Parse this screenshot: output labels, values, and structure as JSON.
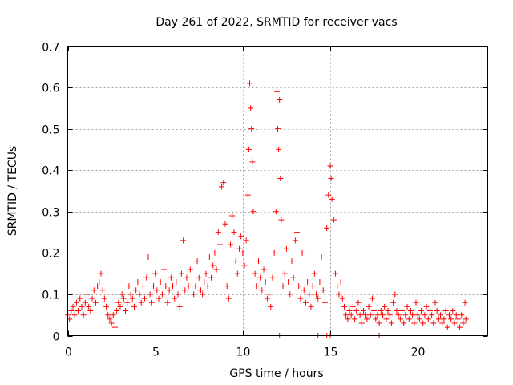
{
  "chart_data": {
    "type": "scatter",
    "title": "Day 261 of 2022, SRMTID for receiver vacs",
    "xlabel": "GPS time / hours",
    "ylabel": "SRMTID / TECUs",
    "xlim": [
      0,
      24
    ],
    "ylim": [
      0,
      0.7
    ],
    "xticks": [
      0,
      5,
      10,
      15,
      20
    ],
    "xtick_labels": [
      "0",
      "5",
      "10",
      "15",
      "20"
    ],
    "yticks": [
      0,
      0.1,
      0.2,
      0.3,
      0.4,
      0.5,
      0.6,
      0.7
    ],
    "ytick_labels": [
      "0",
      "0.1",
      "0.2",
      "0.3",
      "0.4",
      "0.5",
      "0.6",
      "0.7"
    ],
    "grid": true,
    "marker": "plus",
    "series": [
      {
        "name": "SRMTID",
        "color": "#ff0000",
        "points": [
          [
            0.0,
            0.05
          ],
          [
            0.1,
            0.04
          ],
          [
            0.2,
            0.06
          ],
          [
            0.3,
            0.07
          ],
          [
            0.4,
            0.05
          ],
          [
            0.5,
            0.08
          ],
          [
            0.6,
            0.06
          ],
          [
            0.7,
            0.09
          ],
          [
            0.8,
            0.07
          ],
          [
            0.9,
            0.05
          ],
          [
            1.0,
            0.08
          ],
          [
            1.1,
            0.1
          ],
          [
            1.2,
            0.07
          ],
          [
            1.3,
            0.06
          ],
          [
            1.4,
            0.09
          ],
          [
            1.5,
            0.11
          ],
          [
            1.6,
            0.08
          ],
          [
            1.7,
            0.12
          ],
          [
            1.8,
            0.13
          ],
          [
            1.9,
            0.15
          ],
          [
            2.0,
            0.11
          ],
          [
            2.1,
            0.09
          ],
          [
            2.2,
            0.07
          ],
          [
            2.3,
            0.05
          ],
          [
            2.4,
            0.04
          ],
          [
            2.5,
            0.03
          ],
          [
            2.6,
            0.05
          ],
          [
            2.7,
            0.02
          ],
          [
            2.8,
            0.06
          ],
          [
            2.9,
            0.08
          ],
          [
            3.0,
            0.07
          ],
          [
            3.1,
            0.1
          ],
          [
            3.2,
            0.09
          ],
          [
            3.3,
            0.06
          ],
          [
            3.4,
            0.08
          ],
          [
            3.5,
            0.12
          ],
          [
            3.6,
            0.1
          ],
          [
            3.7,
            0.09
          ],
          [
            3.8,
            0.07
          ],
          [
            3.9,
            0.11
          ],
          [
            4.0,
            0.13
          ],
          [
            4.1,
            0.1
          ],
          [
            4.2,
            0.08
          ],
          [
            4.3,
            0.12
          ],
          [
            4.4,
            0.09
          ],
          [
            4.5,
            0.14
          ],
          [
            4.6,
            0.19
          ],
          [
            4.7,
            0.1
          ],
          [
            4.8,
            0.08
          ],
          [
            4.9,
            0.12
          ],
          [
            5.0,
            0.15
          ],
          [
            5.1,
            0.11
          ],
          [
            5.2,
            0.09
          ],
          [
            5.3,
            0.13
          ],
          [
            5.4,
            0.1
          ],
          [
            5.5,
            0.16
          ],
          [
            5.6,
            0.12
          ],
          [
            5.7,
            0.08
          ],
          [
            5.8,
            0.11
          ],
          [
            5.9,
            0.14
          ],
          [
            6.0,
            0.12
          ],
          [
            6.1,
            0.09
          ],
          [
            6.2,
            0.13
          ],
          [
            6.3,
            0.1
          ],
          [
            6.4,
            0.07
          ],
          [
            6.5,
            0.15
          ],
          [
            6.6,
            0.23
          ],
          [
            6.7,
            0.11
          ],
          [
            6.8,
            0.14
          ],
          [
            6.9,
            0.12
          ],
          [
            7.0,
            0.16
          ],
          [
            7.1,
            0.13
          ],
          [
            7.2,
            0.1
          ],
          [
            7.3,
            0.12
          ],
          [
            7.4,
            0.18
          ],
          [
            7.5,
            0.14
          ],
          [
            7.6,
            0.11
          ],
          [
            7.7,
            0.1
          ],
          [
            7.8,
            0.13
          ],
          [
            7.9,
            0.15
          ],
          [
            8.0,
            0.12
          ],
          [
            8.1,
            0.19
          ],
          [
            8.2,
            0.14
          ],
          [
            8.3,
            0.17
          ],
          [
            8.4,
            0.2
          ],
          [
            8.5,
            0.16
          ],
          [
            8.6,
            0.25
          ],
          [
            8.7,
            0.22
          ],
          [
            8.8,
            0.36
          ],
          [
            8.9,
            0.37
          ],
          [
            9.0,
            0.27
          ],
          [
            9.1,
            0.12
          ],
          [
            9.2,
            0.09
          ],
          [
            9.3,
            0.22
          ],
          [
            9.4,
            0.29
          ],
          [
            9.5,
            0.25
          ],
          [
            9.6,
            0.18
          ],
          [
            9.7,
            0.15
          ],
          [
            9.8,
            0.21
          ],
          [
            9.9,
            0.24
          ],
          [
            10.0,
            0.2
          ],
          [
            10.1,
            0.17
          ],
          [
            10.2,
            0.23
          ],
          [
            10.3,
            0.34
          ],
          [
            10.35,
            0.45
          ],
          [
            10.4,
            0.61
          ],
          [
            10.45,
            0.55
          ],
          [
            10.5,
            0.5
          ],
          [
            10.55,
            0.42
          ],
          [
            10.6,
            0.3
          ],
          [
            10.7,
            0.15
          ],
          [
            10.8,
            0.12
          ],
          [
            10.9,
            0.18
          ],
          [
            11.0,
            0.14
          ],
          [
            11.1,
            0.11
          ],
          [
            11.2,
            0.16
          ],
          [
            11.3,
            0.13
          ],
          [
            11.4,
            0.09
          ],
          [
            11.5,
            0.1
          ],
          [
            11.6,
            0.07
          ],
          [
            11.7,
            0.14
          ],
          [
            11.8,
            0.2
          ],
          [
            11.9,
            0.3
          ],
          [
            11.95,
            0.59
          ],
          [
            12.0,
            0.5
          ],
          [
            12.05,
            0.45
          ],
          [
            12.1,
            0.57
          ],
          [
            12.15,
            0.38
          ],
          [
            12.2,
            0.28
          ],
          [
            12.3,
            0.12
          ],
          [
            12.4,
            0.15
          ],
          [
            12.5,
            0.21
          ],
          [
            12.6,
            0.13
          ],
          [
            12.7,
            0.1
          ],
          [
            12.8,
            0.18
          ],
          [
            12.9,
            0.14
          ],
          [
            13.0,
            0.23
          ],
          [
            13.1,
            0.25
          ],
          [
            13.2,
            0.12
          ],
          [
            13.3,
            0.09
          ],
          [
            13.4,
            0.2
          ],
          [
            13.5,
            0.11
          ],
          [
            13.6,
            0.08
          ],
          [
            13.7,
            0.13
          ],
          [
            13.8,
            0.1
          ],
          [
            13.9,
            0.07
          ],
          [
            14.0,
            0.12
          ],
          [
            14.1,
            0.15
          ],
          [
            14.2,
            0.1
          ],
          [
            14.3,
            0.09
          ],
          [
            14.4,
            0.13
          ],
          [
            14.5,
            0.19
          ],
          [
            14.6,
            0.11
          ],
          [
            14.7,
            0.08
          ],
          [
            14.8,
            0.26
          ],
          [
            14.9,
            0.34
          ],
          [
            15.0,
            0.41
          ],
          [
            15.05,
            0.38
          ],
          [
            15.1,
            0.33
          ],
          [
            15.2,
            0.28
          ],
          [
            15.3,
            0.15
          ],
          [
            15.4,
            0.12
          ],
          [
            15.5,
            0.1
          ],
          [
            15.6,
            0.13
          ],
          [
            15.7,
            0.09
          ],
          [
            15.8,
            0.07
          ],
          [
            15.9,
            0.05
          ],
          [
            16.0,
            0.04
          ],
          [
            16.1,
            0.06
          ],
          [
            16.2,
            0.05
          ],
          [
            16.3,
            0.07
          ],
          [
            16.4,
            0.04
          ],
          [
            16.5,
            0.06
          ],
          [
            16.6,
            0.08
          ],
          [
            16.7,
            0.05
          ],
          [
            16.8,
            0.03
          ],
          [
            16.9,
            0.06
          ],
          [
            17.0,
            0.05
          ],
          [
            17.1,
            0.04
          ],
          [
            17.2,
            0.07
          ],
          [
            17.3,
            0.05
          ],
          [
            17.4,
            0.09
          ],
          [
            17.5,
            0.06
          ],
          [
            17.6,
            0.04
          ],
          [
            17.7,
            0.05
          ],
          [
            17.8,
            0.03
          ],
          [
            17.9,
            0.06
          ],
          [
            18.0,
            0.05
          ],
          [
            18.1,
            0.07
          ],
          [
            18.2,
            0.04
          ],
          [
            18.3,
            0.06
          ],
          [
            18.4,
            0.05
          ],
          [
            18.5,
            0.03
          ],
          [
            18.6,
            0.08
          ],
          [
            18.7,
            0.1
          ],
          [
            18.8,
            0.06
          ],
          [
            18.9,
            0.05
          ],
          [
            19.0,
            0.04
          ],
          [
            19.1,
            0.06
          ],
          [
            19.2,
            0.03
          ],
          [
            19.3,
            0.05
          ],
          [
            19.4,
            0.07
          ],
          [
            19.5,
            0.04
          ],
          [
            19.6,
            0.06
          ],
          [
            19.7,
            0.05
          ],
          [
            19.8,
            0.03
          ],
          [
            19.9,
            0.08
          ],
          [
            20.0,
            0.05
          ],
          [
            20.1,
            0.04
          ],
          [
            20.2,
            0.06
          ],
          [
            20.3,
            0.03
          ],
          [
            20.4,
            0.05
          ],
          [
            20.5,
            0.07
          ],
          [
            20.6,
            0.04
          ],
          [
            20.7,
            0.06
          ],
          [
            20.8,
            0.05
          ],
          [
            20.9,
            0.03
          ],
          [
            21.0,
            0.08
          ],
          [
            21.1,
            0.06
          ],
          [
            21.2,
            0.04
          ],
          [
            21.3,
            0.05
          ],
          [
            21.4,
            0.03
          ],
          [
            21.5,
            0.04
          ],
          [
            21.6,
            0.06
          ],
          [
            21.7,
            0.02
          ],
          [
            21.8,
            0.05
          ],
          [
            21.9,
            0.04
          ],
          [
            22.0,
            0.06
          ],
          [
            22.1,
            0.03
          ],
          [
            22.2,
            0.05
          ],
          [
            22.3,
            0.04
          ],
          [
            22.4,
            0.02
          ],
          [
            22.5,
            0.05
          ],
          [
            22.6,
            0.03
          ],
          [
            22.7,
            0.08
          ],
          [
            22.75,
            0.04
          ],
          [
            12.1,
            0.0
          ],
          [
            14.3,
            0.0
          ],
          [
            14.8,
            0.0
          ],
          [
            15.0,
            0.0
          ],
          [
            17.8,
            0.0
          ]
        ]
      }
    ]
  }
}
